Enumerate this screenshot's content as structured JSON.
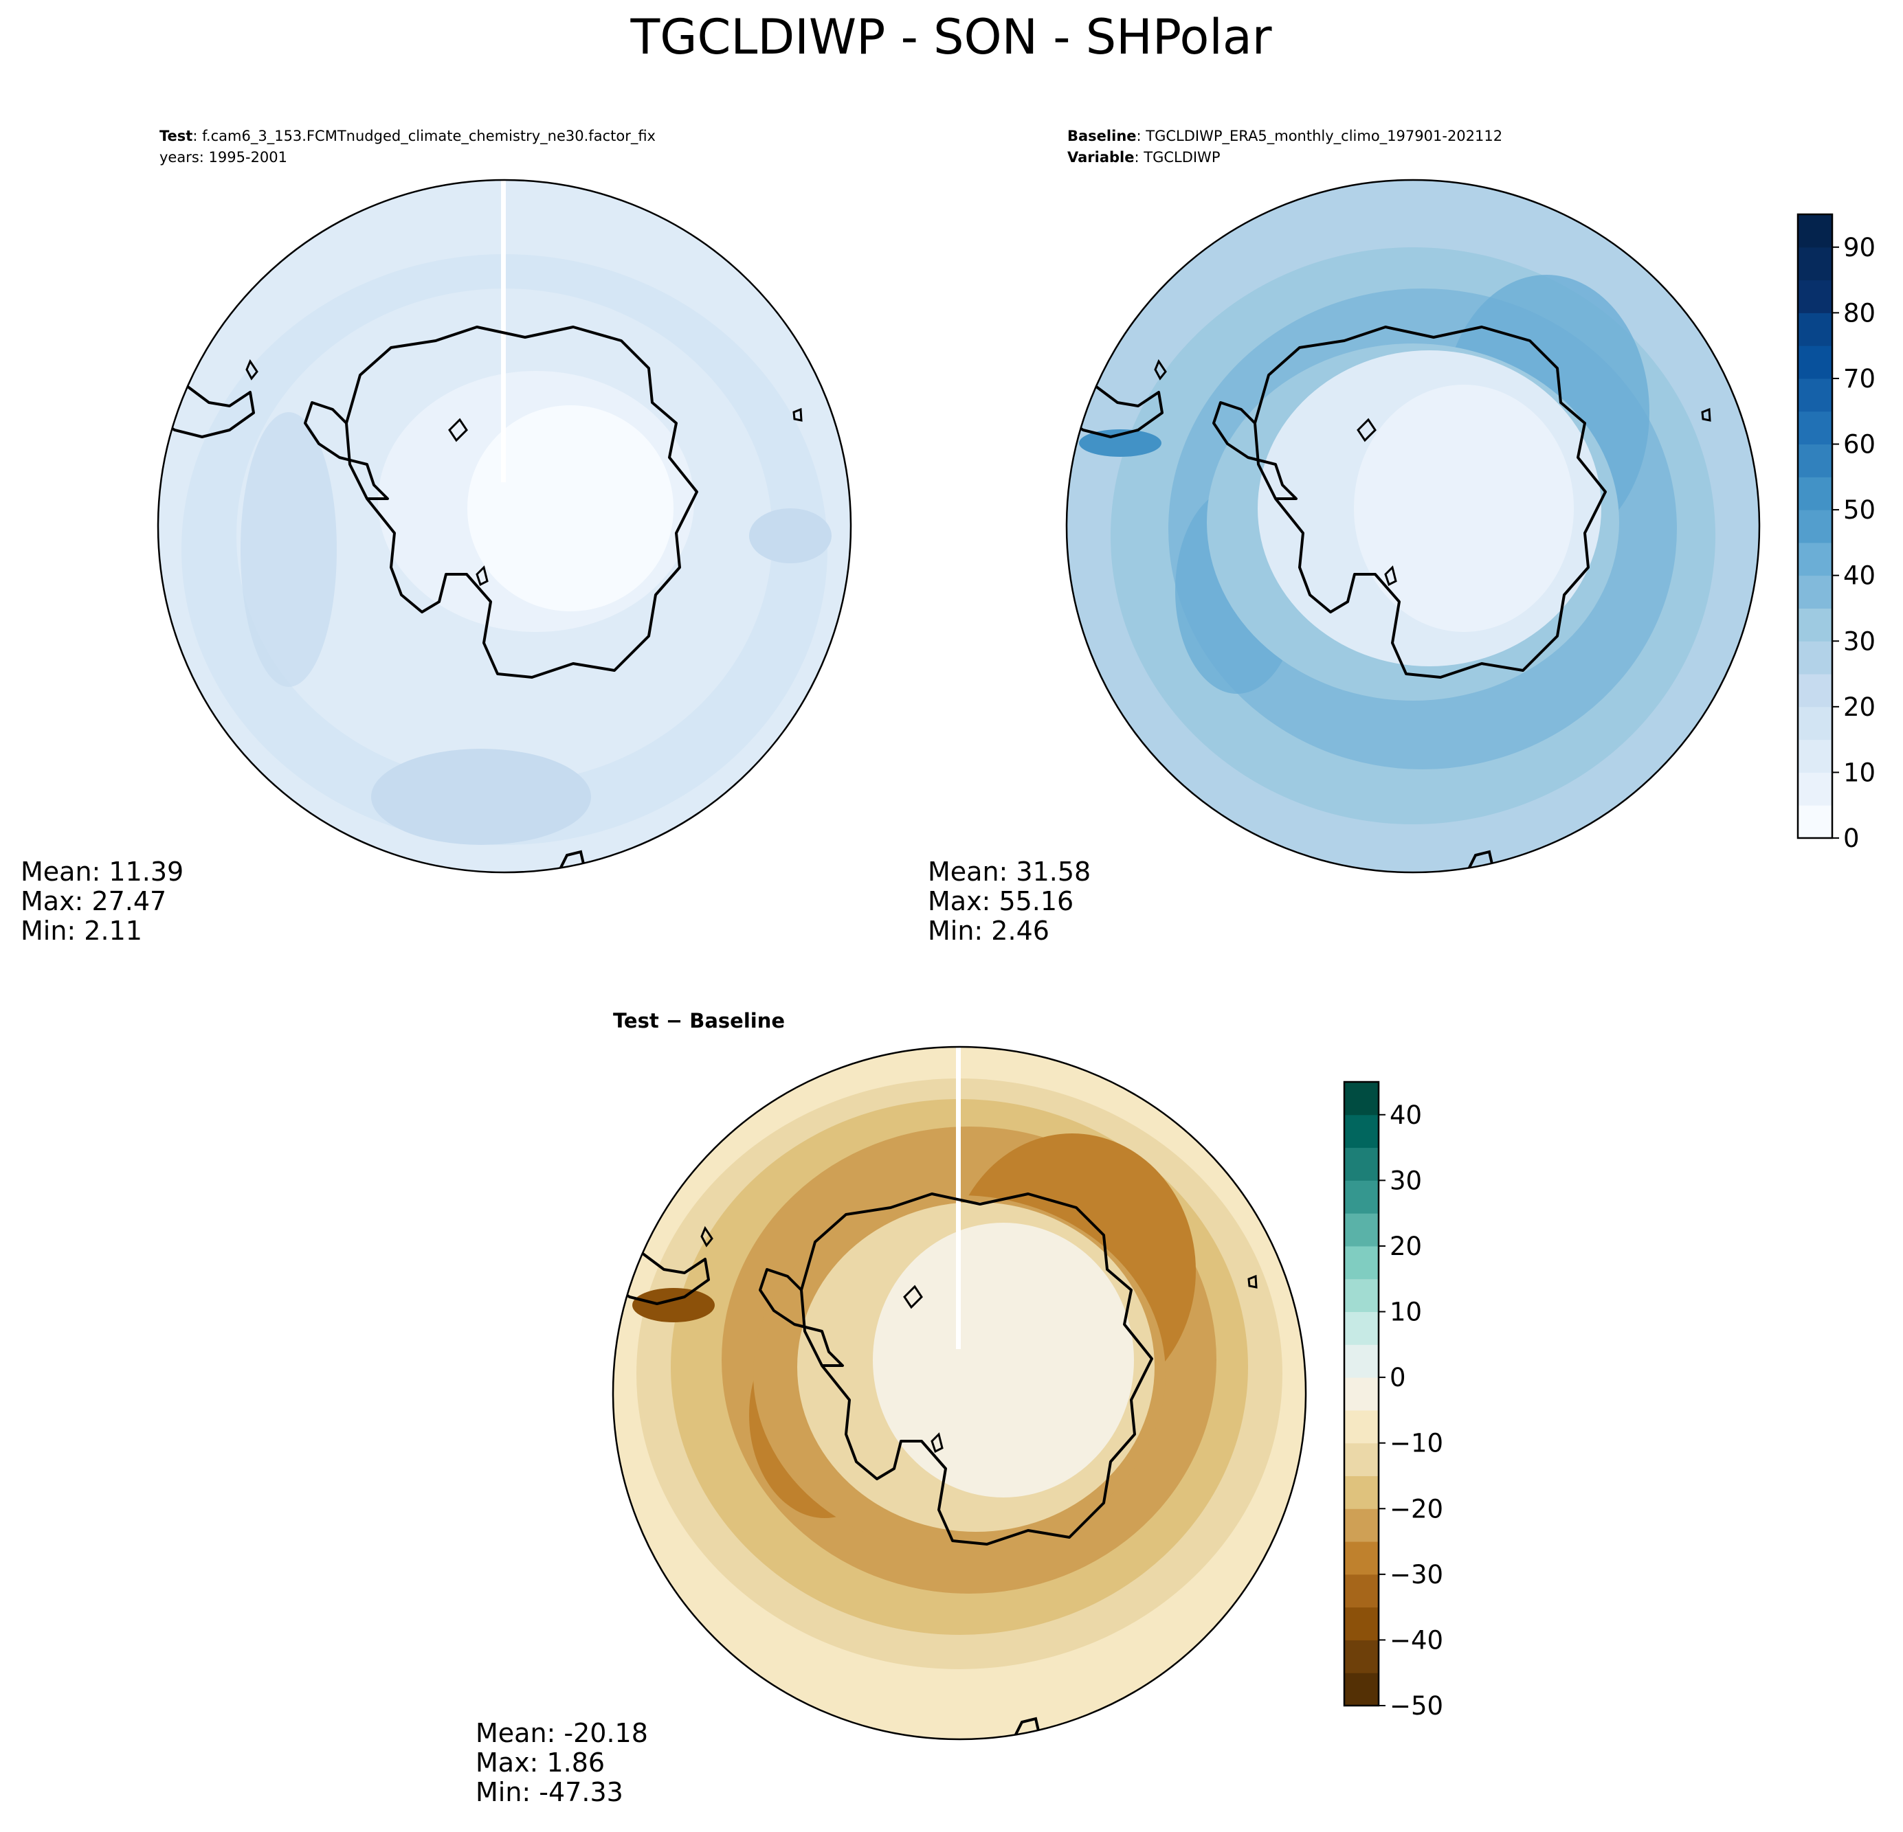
{
  "figure": {
    "title": "TGCLDIWP - SON - SHPolar"
  },
  "panels": [
    {
      "id": "test",
      "header": [
        {
          "bold": "Test",
          "text": ": f.cam6_3_153.FCMTnudged_climate_chemistry_ne30.factor_fix"
        },
        {
          "bold": "",
          "text": "years: 1995-2001"
        }
      ],
      "stats": {
        "mean": "Mean: 11.39",
        "max": "Max: 27.47",
        "min": "Min:  2.11"
      }
    },
    {
      "id": "baseline",
      "header": [
        {
          "bold": "Baseline",
          "text": ": TGCLDIWP_ERA5_monthly_climo_197901-202112"
        },
        {
          "bold": "Variable",
          "text": ": TGCLDIWP"
        }
      ],
      "stats": {
        "mean": "Mean: 31.58",
        "max": "Max: 55.16",
        "min": "Min:  2.46"
      }
    },
    {
      "id": "diff",
      "header": [
        {
          "bold": "Test − Baseline",
          "text": ""
        }
      ],
      "stats": {
        "mean": "Mean: -20.18",
        "max": "Max:  1.86",
        "min": "Min: -47.33"
      }
    }
  ],
  "chart_data": [
    {
      "type": "heatmap",
      "title": "Test",
      "projection": "south polar stereographic",
      "colormap": "Blues",
      "stats": {
        "mean": 11.39,
        "max": 27.47,
        "min": 2.11
      }
    },
    {
      "type": "heatmap",
      "title": "Baseline",
      "projection": "south polar stereographic",
      "colormap": "Blues",
      "colorbar": {
        "range": [
          0,
          95
        ],
        "step": 5,
        "ticks": [
          0,
          10,
          20,
          30,
          40,
          50,
          60,
          70,
          80,
          90
        ],
        "tick_labels": [
          "0",
          "10",
          "20",
          "30",
          "40",
          "50",
          "60",
          "70",
          "80",
          "90"
        ]
      },
      "stats": {
        "mean": 31.58,
        "max": 55.16,
        "min": 2.46
      }
    },
    {
      "type": "heatmap",
      "title": "Test − Baseline",
      "projection": "south polar stereographic",
      "colormap": "BrBG",
      "colorbar": {
        "range": [
          -50,
          45
        ],
        "step": 5,
        "ticks": [
          -50,
          -40,
          -30,
          -20,
          -10,
          0,
          10,
          20,
          30,
          40
        ],
        "tick_labels": [
          "−50",
          "−40",
          "−30",
          "−20",
          "−10",
          "0",
          "10",
          "20",
          "30",
          "40"
        ]
      },
      "stats": {
        "mean": -20.18,
        "max": 1.86,
        "min": -47.33
      }
    }
  ],
  "colors": {
    "blues": [
      "#f7fbff",
      "#eaf2fb",
      "#deebf7",
      "#d2e4f3",
      "#c6dbef",
      "#b2d2e8",
      "#9ecae1",
      "#82badb",
      "#6baed6",
      "#539ecd",
      "#4292c6",
      "#3181bd",
      "#2171b5",
      "#1561a9",
      "#08519c",
      "#08458a",
      "#08306b",
      "#062a5c",
      "#04234d"
    ],
    "brbg": [
      "#543005",
      "#6e400a",
      "#8c510a",
      "#a6661a",
      "#bf812d",
      "#cfa055",
      "#dfc27d",
      "#ebd8a8",
      "#f6e8c3",
      "#f5f0e2",
      "#e4f0ee",
      "#c7eae5",
      "#a2dcd2",
      "#80cdc1",
      "#5ab2a8",
      "#35978f",
      "#1d7f77",
      "#01665e",
      "#004c41"
    ]
  }
}
